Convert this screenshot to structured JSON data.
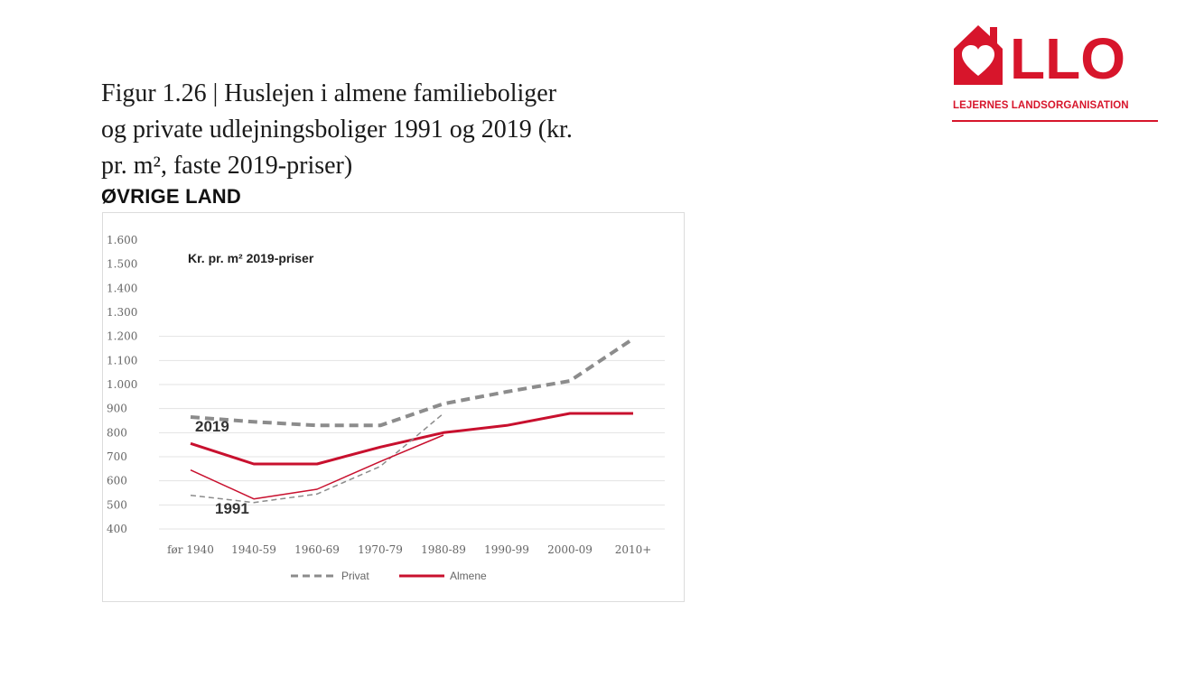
{
  "figure": {
    "title_lines": [
      "Figur 1.26 | Huslejen i almene familieboliger",
      "og private udlejningsboliger 1991 og 2019 (kr.",
      "pr. m², faste 2019-priser)"
    ],
    "subtitle": "ØVRIGE LAND"
  },
  "logo": {
    "text": "LLO",
    "tagline": "LEJERNES LANDSORGANISATION",
    "color": "#d7152b"
  },
  "chart_data": {
    "type": "line",
    "annotation": "Kr. pr. m² 2019-priser",
    "categories": [
      "før 1940",
      "1940-59",
      "1960-69",
      "1970-79",
      "1980-89",
      "1990-99",
      "2000-09",
      "2010+"
    ],
    "y_ticks": [
      "1.600",
      "1.500",
      "1.400",
      "1.300",
      "1.200",
      "1.100",
      "1.000",
      "900",
      "800",
      "700",
      "600",
      "500",
      "400"
    ],
    "ylim": [
      400,
      1600
    ],
    "grid": true,
    "year_labels": {
      "y2019": "2019",
      "y1991": "1991"
    },
    "legend_position": "bottom",
    "series": [
      {
        "name": "Privat",
        "year": "2019",
        "color": "#8c8c8c",
        "style": "dashed",
        "width": 4,
        "values": [
          865,
          845,
          830,
          830,
          920,
          970,
          1015,
          1190
        ]
      },
      {
        "name": "Almene",
        "year": "2019",
        "color": "#c8102e",
        "style": "solid",
        "width": 3,
        "values": [
          755,
          670,
          670,
          740,
          800,
          830,
          880,
          880
        ]
      },
      {
        "name": "Privat",
        "year": "1991",
        "color": "#8c8c8c",
        "style": "dashed",
        "width": 1.5,
        "values": [
          540,
          510,
          545,
          660,
          880,
          null,
          null,
          null
        ]
      },
      {
        "name": "Almene",
        "year": "1991",
        "color": "#c8102e",
        "style": "solid",
        "width": 1.5,
        "values": [
          645,
          525,
          565,
          680,
          790,
          null,
          null,
          null
        ]
      }
    ],
    "legend": [
      {
        "label": "Privat",
        "color": "#8c8c8c",
        "style": "dashed"
      },
      {
        "label": "Almene",
        "color": "#c8102e",
        "style": "solid"
      }
    ]
  }
}
